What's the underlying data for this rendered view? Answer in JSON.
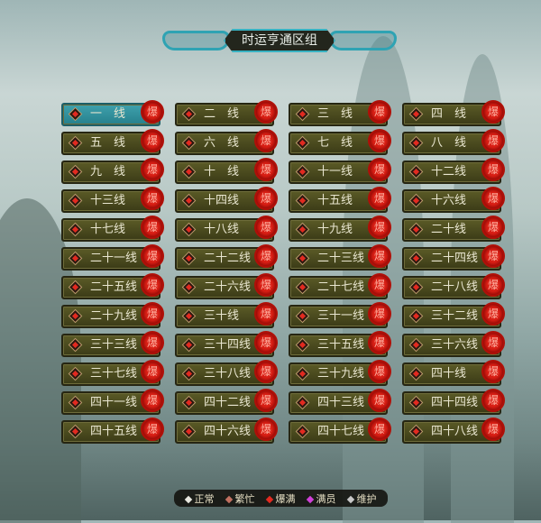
{
  "title": "时运亨通区组",
  "selected_index": 0,
  "servers": [
    "一　线",
    "二　线",
    "三　线",
    "四　线",
    "五　线",
    "六　线",
    "七　线",
    "八　线",
    "九　线",
    "十　线",
    "十一线",
    "十二线",
    "十三线",
    "十四线",
    "十五线",
    "十六线",
    "十七线",
    "十八线",
    "十九线",
    "二十线",
    "二十一线",
    "二十二线",
    "二十三线",
    "二十四线",
    "二十五线",
    "二十六线",
    "二十七线",
    "二十八线",
    "二十九线",
    "三十线",
    "三十一线",
    "三十二线",
    "三十三线",
    "三十四线",
    "三十五线",
    "三十六线",
    "三十七线",
    "三十八线",
    "三十九线",
    "四十线",
    "四十一线",
    "四十二线",
    "四十三线",
    "四十四线",
    "四十五线",
    "四十六线",
    "四十七线",
    "四十八线"
  ],
  "server_status_icon": "red-diamond",
  "server_badge": "爆",
  "legend": [
    {
      "label": "正常",
      "color": "#e8e8e0"
    },
    {
      "label": "繁忙",
      "color": "#c07060"
    },
    {
      "label": "爆满",
      "color": "#e22a20"
    },
    {
      "label": "满员",
      "color": "#d040d8"
    },
    {
      "label": "维护",
      "color": "#c8c8c8"
    }
  ]
}
